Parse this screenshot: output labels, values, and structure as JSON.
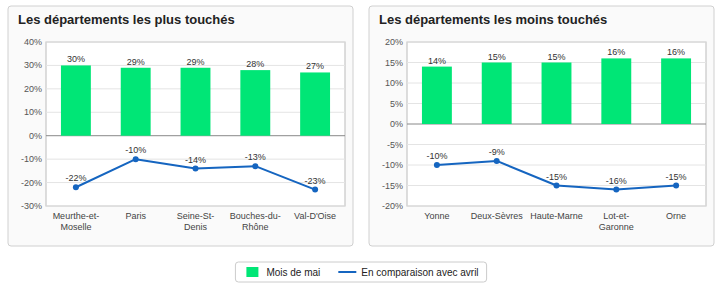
{
  "chart_data": [
    {
      "type": "bar",
      "title": "Les départements les plus touchés",
      "categories": [
        "Meurthe-et-Moselle",
        "Paris",
        "Seine-St-Denis",
        "Bouches-du-Rhône",
        "Val-D'Oise"
      ],
      "series": [
        {
          "name": "Mois de mai",
          "type": "bar",
          "color": "#00e676",
          "values": [
            30,
            29,
            29,
            28,
            27
          ],
          "value_labels": [
            "30%",
            "29%",
            "29%",
            "28%",
            "27%"
          ]
        },
        {
          "name": "En comparaison avec avril",
          "type": "line",
          "color": "#1565c0",
          "marker": "circle",
          "values": [
            -22,
            -10,
            -14,
            -13,
            -23
          ],
          "value_labels": [
            "-22%",
            "-10%",
            "-14%",
            "-13%",
            "-23%"
          ]
        }
      ],
      "ylim": [
        -30,
        40
      ],
      "yticks": [
        {
          "value": -30,
          "label": "-30%"
        },
        {
          "value": -20,
          "label": "-20%"
        },
        {
          "value": -10,
          "label": "-10%"
        },
        {
          "value": 0,
          "label": "0%"
        },
        {
          "value": 10,
          "label": "10%"
        },
        {
          "value": 20,
          "label": "20%"
        },
        {
          "value": 30,
          "label": "30%"
        },
        {
          "value": 40,
          "label": "40%"
        }
      ],
      "grid": true,
      "data_labels": true,
      "legend": "bottom"
    },
    {
      "type": "bar",
      "title": "Les départements les moins touchés",
      "categories": [
        "Yonne",
        "Deux-Sèvres",
        "Haute-Marne",
        "Lot-et-Garonne",
        "Orne"
      ],
      "series": [
        {
          "name": "Mois de mai",
          "type": "bar",
          "color": "#00e676",
          "values": [
            14,
            15,
            15,
            16,
            16
          ],
          "value_labels": [
            "14%",
            "15%",
            "15%",
            "16%",
            "16%"
          ]
        },
        {
          "name": "En comparaison avec avril",
          "type": "line",
          "color": "#1565c0",
          "marker": "circle",
          "values": [
            -10,
            -9,
            -15,
            -16,
            -15
          ],
          "value_labels": [
            "-10%",
            "-9%",
            "-15%",
            "-16%",
            "-15%"
          ]
        }
      ],
      "ylim": [
        -20,
        20
      ],
      "yticks": [
        {
          "value": -20,
          "label": "-20%"
        },
        {
          "value": -15,
          "label": "-15%"
        },
        {
          "value": -10,
          "label": "-10%"
        },
        {
          "value": -5,
          "label": "-5%"
        },
        {
          "value": 0,
          "label": "0%"
        },
        {
          "value": 5,
          "label": "5%"
        },
        {
          "value": 10,
          "label": "10%"
        },
        {
          "value": 15,
          "label": "15%"
        },
        {
          "value": 20,
          "label": "20%"
        }
      ],
      "grid": true,
      "data_labels": true,
      "legend": "bottom"
    }
  ]
}
